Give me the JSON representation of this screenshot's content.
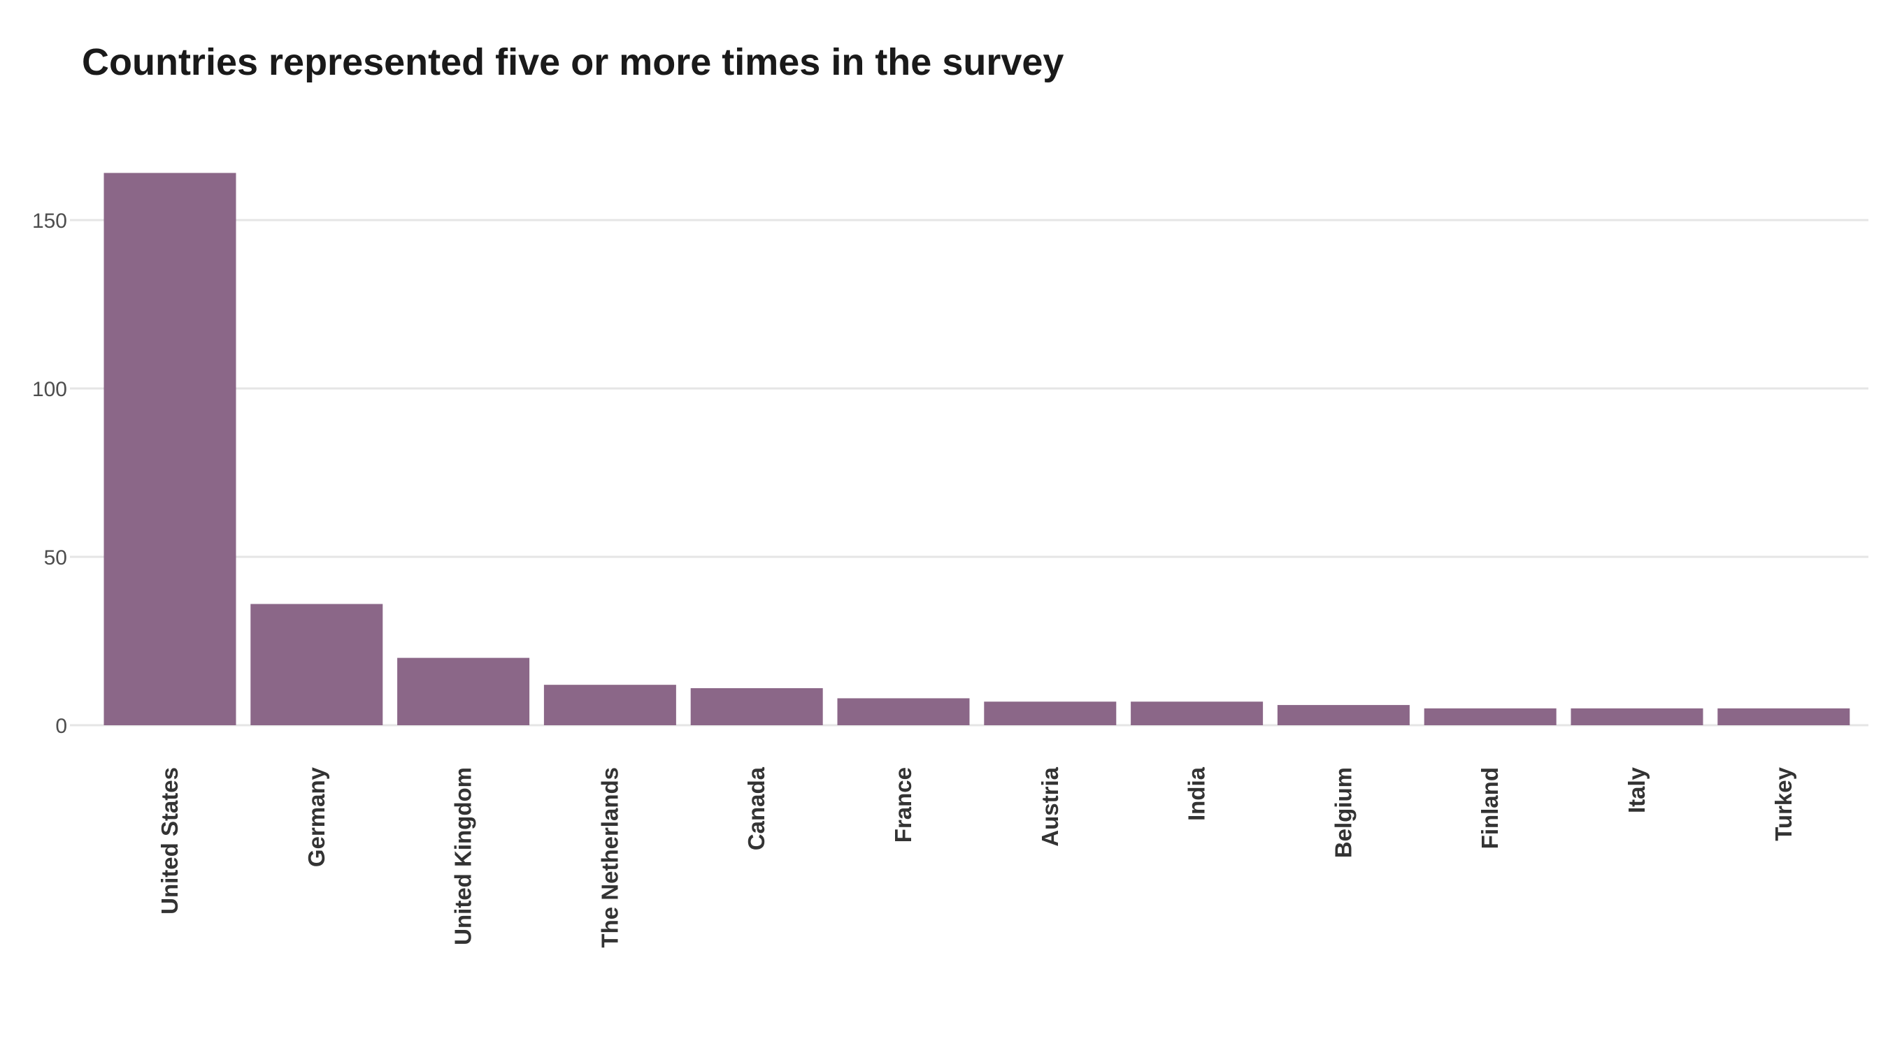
{
  "chart_data": {
    "type": "bar",
    "title": "Countries represented five or more times in the survey",
    "xlabel": "",
    "ylabel": "",
    "categories": [
      "United States",
      "Germany",
      "United Kingdom",
      "The Netherlands",
      "Canada",
      "France",
      "Austria",
      "India",
      "Belgium",
      "Finland",
      "Italy",
      "Turkey"
    ],
    "values": [
      164,
      36,
      20,
      12,
      11,
      8,
      7,
      7,
      6,
      5,
      5,
      5
    ],
    "ylim": [
      0,
      164
    ],
    "yticks": [
      0,
      50,
      100,
      150
    ],
    "grid": "horizontal",
    "legend": "none",
    "colors": {
      "bar": "#8b6788",
      "grid": "#e5e5e5",
      "tick_text": "#4d4d4d"
    }
  }
}
